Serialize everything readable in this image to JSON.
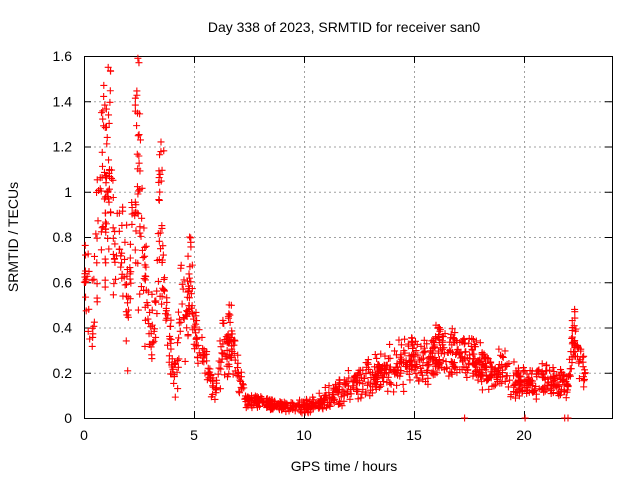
{
  "chart_data": {
    "type": "scatter",
    "title": "Day 338 of 2023, SRMTID for receiver san0",
    "xlabel": "GPS time / hours",
    "ylabel": "SRMTID / TECUs",
    "xlim": [
      0,
      24
    ],
    "ylim": [
      0,
      1.6
    ],
    "xticks": [
      0,
      5,
      10,
      15,
      20
    ],
    "yticks": [
      0,
      0.2,
      0.4,
      0.6,
      0.8,
      1,
      1.2,
      1.4,
      1.6
    ],
    "xtick_labels": [
      "0",
      "5",
      "10",
      "15",
      "20"
    ],
    "ytick_labels": [
      "0",
      "0.2",
      "0.4",
      "0.6",
      "0.8",
      "1",
      "1.2",
      "1.4",
      "1.6"
    ],
    "grid": true,
    "marker": "+",
    "series_color": "#ff0000",
    "series": [
      {
        "name": "SRMTID",
        "profile": {
          "x": [
            0.0,
            0.2,
            0.4,
            0.6,
            0.8,
            1.0,
            1.2,
            1.4,
            1.6,
            1.8,
            2.0,
            2.2,
            2.4,
            2.5,
            2.6,
            2.8,
            3.0,
            3.2,
            3.4,
            3.6,
            3.8,
            4.0,
            4.2,
            4.4,
            4.6,
            4.8,
            5.0,
            5.2,
            5.5,
            5.8,
            6.0,
            6.3,
            6.6,
            6.8,
            7.0,
            7.3,
            7.6,
            8.0,
            8.5,
            9.0,
            9.5,
            10.0,
            10.5,
            11.0,
            11.5,
            12.0,
            12.5,
            13.0,
            13.5,
            14.0,
            14.5,
            15.0,
            15.5,
            16.0,
            16.5,
            17.0,
            17.5,
            18.0,
            18.5,
            19.0,
            19.5,
            20.0,
            20.5,
            21.0,
            21.5,
            22.0,
            22.3,
            22.5,
            22.8
          ],
          "center": [
            0.72,
            0.55,
            0.4,
            0.75,
            0.85,
            0.95,
            1.1,
            0.7,
            0.75,
            0.85,
            0.45,
            0.8,
            0.95,
            1.0,
            0.85,
            0.55,
            0.4,
            0.35,
            0.8,
            0.55,
            0.45,
            0.25,
            0.18,
            0.5,
            0.4,
            0.55,
            0.4,
            0.3,
            0.28,
            0.12,
            0.15,
            0.3,
            0.25,
            0.3,
            0.2,
            0.1,
            0.08,
            0.07,
            0.06,
            0.05,
            0.05,
            0.05,
            0.06,
            0.08,
            0.12,
            0.14,
            0.15,
            0.18,
            0.2,
            0.22,
            0.25,
            0.26,
            0.24,
            0.3,
            0.28,
            0.3,
            0.26,
            0.24,
            0.2,
            0.22,
            0.18,
            0.15,
            0.16,
            0.18,
            0.15,
            0.14,
            0.35,
            0.25,
            0.2
          ],
          "spread": [
            0.1,
            0.3,
            0.3,
            0.4,
            0.35,
            0.45,
            0.4,
            0.35,
            0.3,
            0.4,
            0.3,
            0.4,
            0.55,
            0.6,
            0.4,
            0.3,
            0.2,
            0.15,
            0.35,
            0.25,
            0.2,
            0.15,
            0.1,
            0.3,
            0.25,
            0.2,
            0.15,
            0.1,
            0.1,
            0.06,
            0.1,
            0.15,
            0.15,
            0.12,
            0.1,
            0.06,
            0.04,
            0.03,
            0.03,
            0.03,
            0.03,
            0.04,
            0.04,
            0.06,
            0.08,
            0.08,
            0.08,
            0.1,
            0.12,
            0.12,
            0.15,
            0.15,
            0.12,
            0.12,
            0.12,
            0.12,
            0.12,
            0.12,
            0.1,
            0.1,
            0.1,
            0.08,
            0.08,
            0.1,
            0.08,
            0.08,
            0.15,
            0.1,
            0.08
          ]
        },
        "peaks": [
          [
            0.9,
            1.47
          ],
          [
            1.1,
            1.55
          ],
          [
            2.45,
            1.59
          ],
          [
            3.5,
            1.22
          ],
          [
            4.8,
            0.8
          ],
          [
            6.6,
            0.5
          ],
          [
            16.1,
            0.4
          ],
          [
            22.3,
            0.48
          ]
        ],
        "near_zero_points": [
          [
            17.3,
            0.0
          ],
          [
            20.05,
            0.0
          ],
          [
            21.85,
            0.0
          ],
          [
            22.0,
            0.0
          ]
        ],
        "count": 1400
      }
    ]
  }
}
